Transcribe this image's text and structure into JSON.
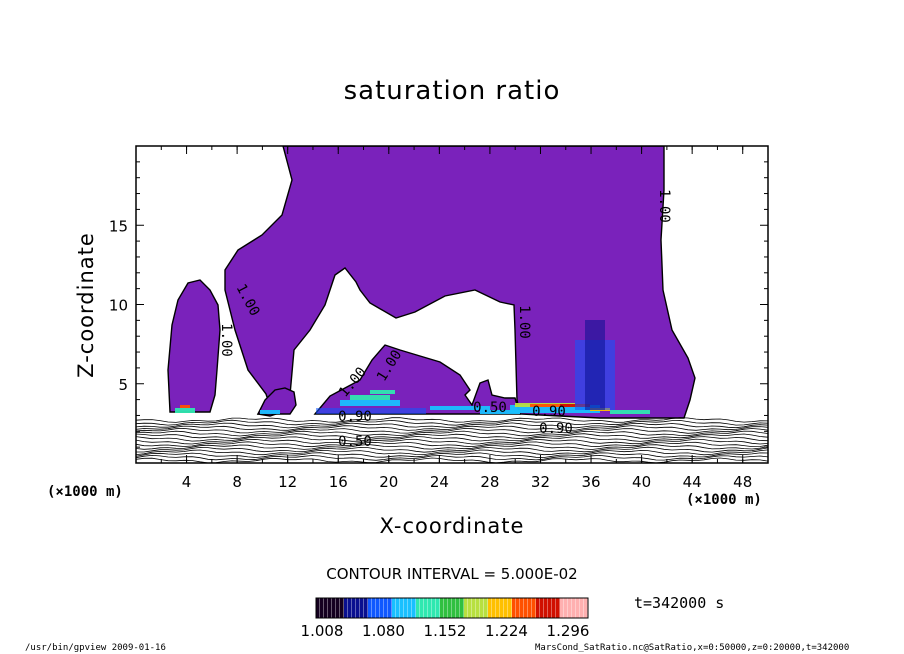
{
  "title": "saturation ratio",
  "chart_data": {
    "type": "contour",
    "title": "saturation ratio",
    "xlabel": "X-coordinate",
    "ylabel": "Z-coordinate",
    "x_unit": "(×1000 m)",
    "xlim": [
      0,
      50
    ],
    "ylim": [
      0,
      20
    ],
    "x_ticks": [
      4,
      8,
      12,
      16,
      20,
      24,
      28,
      32,
      36,
      40,
      44,
      48
    ],
    "y_ticks": [
      5,
      10,
      15
    ],
    "contour_labels": [
      "1.00",
      "1.00",
      "1.00",
      "1.00",
      "1.00",
      "1.00",
      "0.90",
      "0.50",
      "0.90",
      "0.90",
      "0.50"
    ],
    "contour_interval": "CONTOUR INTERVAL = 5.000E-02",
    "colorbar": {
      "ticks": [
        "1.008",
        "1.080",
        "1.152",
        "1.224",
        "1.296"
      ],
      "colors": [
        "#150020",
        "#0a1090",
        "#1058ff",
        "#19c0ff",
        "#2fe8b0",
        "#30c040",
        "#b8e040",
        "#ffc000",
        "#ff5000",
        "#d01000",
        "#ffb0b0"
      ]
    },
    "fill_color": "#7a22bb",
    "time": "t=342000 s"
  },
  "footer": {
    "left": "/usr/bin/gpview  2009-01-16",
    "right": "MarsCond_SatRatio.nc@SatRatio,x=0:50000,z=0:20000,t=342000"
  }
}
